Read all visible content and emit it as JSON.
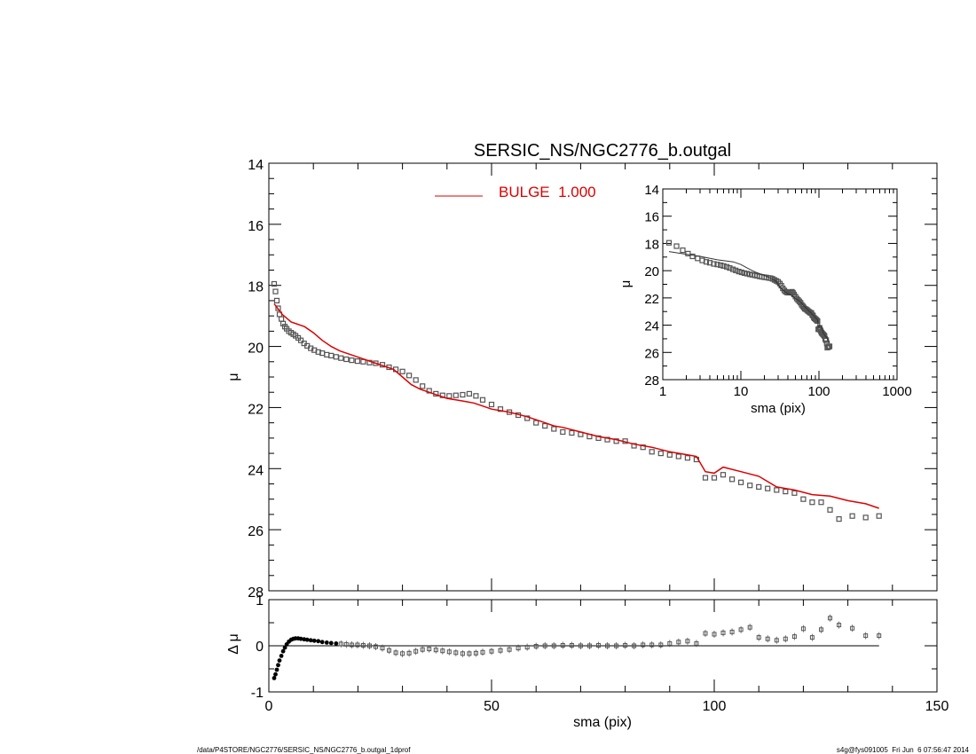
{
  "footer": {
    "left": "/data/P4STORE/NGC2776/SERSIC_NS/NGC2776_b.outgal_1dprof",
    "right": "s4g@fys091005  Fri Jun  6 07:56:47 2014"
  },
  "colors": {
    "model": "#dd0000",
    "data": "#555555",
    "inset_model": "#333333"
  },
  "chart_data": [
    {
      "type": "scatter",
      "id": "main-profile",
      "title": "SERSIC_NS/NGC2776_b.outgal",
      "xlabel": "",
      "ylabel": "μ",
      "xlim": [
        0,
        150
      ],
      "ylim": [
        28,
        14
      ],
      "y_inverted": true,
      "yticks": [
        14,
        16,
        18,
        20,
        22,
        24,
        26,
        28
      ],
      "legend": {
        "entry": "BULGE  1.000",
        "position": "top-center"
      },
      "series": [
        {
          "name": "",
          "kind": "points",
          "x": [
            1.2,
            1.5,
            1.8,
            2.1,
            2.4,
            2.8,
            3.2,
            3.6,
            4.0,
            4.5,
            5.0,
            5.5,
            6.0,
            6.6,
            7.2,
            7.9,
            8.6,
            9.4,
            10.2,
            11.1,
            12.0,
            13.0,
            14.0,
            15.1,
            16.2,
            17.4,
            18.6,
            19.9,
            21.2,
            22.6,
            24.0,
            25.5,
            27.0,
            28.5,
            30.0,
            31.5,
            33.0,
            34.5,
            36.0,
            37.5,
            39.0,
            40.5,
            42.0,
            43.5,
            45.0,
            46.5,
            48.0,
            50.0,
            52.0,
            54.0,
            56.0,
            58.0,
            60.0,
            62.0,
            64.0,
            66.0,
            68.0,
            70.0,
            72.0,
            74.0,
            76.0,
            78.0,
            80.0,
            82.0,
            84.0,
            86.0,
            88.0,
            90.0,
            92.0,
            94.0,
            96.0,
            98.0,
            100.0,
            102.0,
            104.0,
            106.0,
            108.0,
            110.0,
            112.0,
            114.0,
            116.0,
            118.0,
            120.0,
            122.0,
            124.0,
            126.0,
            128.0,
            131.0,
            134.0,
            137.0
          ],
          "y": [
            17.95,
            18.2,
            18.5,
            18.75,
            18.95,
            19.1,
            19.25,
            19.35,
            19.42,
            19.5,
            19.55,
            19.6,
            19.65,
            19.72,
            19.8,
            19.9,
            19.98,
            20.06,
            20.12,
            20.18,
            20.22,
            20.27,
            20.3,
            20.34,
            20.38,
            20.42,
            20.45,
            20.48,
            20.5,
            20.53,
            20.55,
            20.6,
            20.68,
            20.75,
            20.82,
            20.95,
            21.1,
            21.3,
            21.45,
            21.55,
            21.6,
            21.62,
            21.6,
            21.58,
            21.55,
            21.62,
            21.75,
            21.9,
            22.05,
            22.15,
            22.25,
            22.35,
            22.5,
            22.6,
            22.7,
            22.8,
            22.83,
            22.88,
            22.95,
            23.0,
            23.05,
            23.1,
            23.1,
            23.25,
            23.3,
            23.45,
            23.5,
            23.55,
            23.6,
            23.65,
            23.7,
            24.3,
            24.3,
            24.2,
            24.35,
            24.45,
            24.55,
            24.6,
            24.65,
            24.7,
            24.75,
            24.8,
            25.0,
            25.1,
            25.1,
            25.35,
            25.65,
            25.55,
            25.6,
            25.55
          ]
        },
        {
          "name": "BULGE  1.000",
          "kind": "line",
          "x": [
            1.2,
            3,
            5,
            8,
            10,
            12,
            14,
            16,
            20,
            24,
            28,
            30,
            32,
            34,
            36,
            38,
            40,
            42,
            44,
            46,
            48,
            50,
            54,
            58,
            60,
            62,
            64,
            66,
            70,
            74,
            78,
            82,
            86,
            90,
            94,
            96,
            98,
            100,
            102,
            106,
            110,
            114,
            118,
            122,
            126,
            130,
            134,
            137
          ],
          "y": [
            18.6,
            18.95,
            19.2,
            19.35,
            19.55,
            19.8,
            20.0,
            20.15,
            20.35,
            20.55,
            20.75,
            21.0,
            21.25,
            21.4,
            21.5,
            21.6,
            21.7,
            21.75,
            21.8,
            21.85,
            21.95,
            22.05,
            22.15,
            22.3,
            22.4,
            22.5,
            22.6,
            22.65,
            22.8,
            22.95,
            23.05,
            23.2,
            23.3,
            23.45,
            23.55,
            23.6,
            24.1,
            24.15,
            23.95,
            24.1,
            24.25,
            24.6,
            24.7,
            24.85,
            24.9,
            25.05,
            25.15,
            25.3
          ]
        }
      ]
    },
    {
      "type": "scatter",
      "id": "residuals",
      "xlabel": "sma (pix)",
      "ylabel": "Δ μ",
      "xlim": [
        0,
        150
      ],
      "ylim": [
        -1,
        1
      ],
      "xticks": [
        0,
        50,
        100,
        150
      ],
      "yticks": [
        -1,
        0,
        1
      ],
      "series": [
        {
          "name": "",
          "kind": "points",
          "x": [
            1.2,
            1.5,
            1.8,
            2.1,
            2.4,
            2.8,
            3.2,
            3.6,
            4.0,
            4.5,
            5.0,
            5.5,
            6.0,
            6.6,
            7.2,
            7.9,
            8.6,
            9.4,
            10.2,
            11.1,
            12.0,
            13.0,
            14.0,
            15.1,
            16.2,
            17.4,
            18.6,
            19.9,
            21.2,
            22.6,
            24.0,
            25.5,
            27.0,
            28.5,
            30.0,
            31.5,
            33.0,
            34.5,
            36.0,
            37.5,
            39.0,
            40.5,
            42.0,
            43.5,
            45.0,
            46.5,
            48.0,
            50.0,
            52.0,
            54.0,
            56.0,
            58.0,
            60.0,
            62.0,
            64.0,
            66.0,
            68.0,
            70.0,
            72.0,
            74.0,
            76.0,
            78.0,
            80.0,
            82.0,
            84.0,
            86.0,
            88.0,
            90.0,
            92.0,
            94.0,
            96.0,
            98.0,
            100.0,
            102.0,
            104.0,
            106.0,
            108.0,
            110.0,
            112.0,
            114.0,
            116.0,
            118.0,
            120.0,
            122.0,
            124.0,
            126.0,
            128.0,
            131.0,
            134.0,
            137.0
          ],
          "y": [
            -0.7,
            -0.62,
            -0.52,
            -0.42,
            -0.32,
            -0.22,
            -0.12,
            -0.04,
            0.03,
            0.09,
            0.13,
            0.15,
            0.16,
            0.16,
            0.15,
            0.14,
            0.13,
            0.12,
            0.11,
            0.1,
            0.08,
            0.07,
            0.06,
            0.05,
            0.04,
            0.03,
            0.02,
            0.02,
            0.01,
            0.0,
            -0.02,
            -0.05,
            -0.1,
            -0.15,
            -0.17,
            -0.16,
            -0.12,
            -0.08,
            -0.07,
            -0.09,
            -0.11,
            -0.13,
            -0.15,
            -0.17,
            -0.17,
            -0.16,
            -0.14,
            -0.12,
            -0.1,
            -0.08,
            -0.05,
            -0.03,
            -0.01,
            0.0,
            0.0,
            0.01,
            0.01,
            0.0,
            0.0,
            0.01,
            0.0,
            0.0,
            0.01,
            0.0,
            0.02,
            0.02,
            0.02,
            0.05,
            0.08,
            0.1,
            0.05,
            0.27,
            0.25,
            0.28,
            0.3,
            0.35,
            0.4,
            0.18,
            0.15,
            0.12,
            0.15,
            0.2,
            0.37,
            0.18,
            0.35,
            0.6,
            0.45,
            0.38,
            0.22,
            0.22
          ]
        },
        {
          "name": "",
          "kind": "hline",
          "y": 0,
          "x": [
            0,
            137
          ]
        }
      ]
    },
    {
      "type": "scatter",
      "id": "inset-log",
      "xlabel": "sma (pix)",
      "ylabel": "μ",
      "xscale": "log",
      "xlim": [
        1,
        1000
      ],
      "ylim": [
        28,
        14
      ],
      "y_inverted": true,
      "xticks": [
        1,
        10,
        100,
        1000
      ],
      "xtick_labels": [
        "1",
        "10",
        "100",
        "1000"
      ],
      "yticks": [
        14,
        16,
        18,
        20,
        22,
        24,
        26,
        28
      ],
      "series": [
        {
          "name": "",
          "kind": "points",
          "x": [
            1.2,
            1.5,
            1.8,
            2.1,
            2.4,
            2.8,
            3.2,
            3.6,
            4.0,
            4.5,
            5.0,
            5.5,
            6.0,
            6.6,
            7.2,
            7.9,
            8.6,
            9.4,
            10.2,
            11.1,
            12.0,
            13.0,
            14.0,
            15.1,
            16.2,
            17.4,
            18.6,
            19.9,
            21.2,
            22.6,
            24.0,
            25.5,
            27.0,
            28.5,
            30.0,
            31.5,
            33.0,
            34.5,
            36.0,
            37.5,
            39.0,
            40.5,
            42.0,
            43.5,
            45.0,
            46.5,
            48.0,
            50.0,
            52.0,
            54.0,
            56.0,
            58.0,
            60.0,
            62.0,
            64.0,
            66.0,
            68.0,
            70.0,
            72.0,
            74.0,
            76.0,
            78.0,
            80.0,
            82.0,
            84.0,
            86.0,
            88.0,
            90.0,
            92.0,
            94.0,
            96.0,
            98.0,
            100.0,
            102.0,
            104.0,
            106.0,
            108.0,
            110.0,
            112.0,
            114.0,
            116.0,
            118.0,
            120.0,
            122.0,
            124.0,
            126.0,
            128.0,
            131.0,
            134.0,
            137.0
          ],
          "y": [
            17.95,
            18.2,
            18.5,
            18.75,
            18.95,
            19.1,
            19.25,
            19.35,
            19.42,
            19.5,
            19.55,
            19.6,
            19.65,
            19.72,
            19.8,
            19.9,
            19.98,
            20.06,
            20.12,
            20.18,
            20.22,
            20.27,
            20.3,
            20.34,
            20.38,
            20.42,
            20.45,
            20.48,
            20.5,
            20.53,
            20.55,
            20.6,
            20.68,
            20.75,
            20.82,
            20.95,
            21.1,
            21.3,
            21.45,
            21.55,
            21.6,
            21.62,
            21.6,
            21.58,
            21.55,
            21.62,
            21.75,
            21.9,
            22.05,
            22.15,
            22.25,
            22.35,
            22.5,
            22.6,
            22.7,
            22.8,
            22.83,
            22.88,
            22.95,
            23.0,
            23.05,
            23.1,
            23.1,
            23.25,
            23.3,
            23.45,
            23.5,
            23.55,
            23.6,
            23.65,
            23.7,
            24.3,
            24.3,
            24.2,
            24.35,
            24.45,
            24.55,
            24.6,
            24.65,
            24.7,
            24.75,
            24.8,
            25.0,
            25.1,
            25.1,
            25.35,
            25.65,
            25.55,
            25.6,
            25.55
          ]
        },
        {
          "name": "",
          "kind": "line",
          "x": [
            1.2,
            3,
            5,
            8,
            10,
            12,
            14,
            16,
            20,
            24,
            28,
            30,
            32,
            34,
            36,
            38,
            40,
            42,
            44,
            46,
            48,
            50,
            54,
            58,
            60,
            62,
            64,
            66,
            70,
            74,
            78,
            82,
            86,
            90,
            94,
            96,
            98,
            100,
            102,
            106,
            110,
            114,
            118,
            122,
            126,
            130,
            134,
            137
          ],
          "y": [
            18.6,
            18.95,
            19.2,
            19.35,
            19.55,
            19.8,
            20.0,
            20.15,
            20.35,
            20.55,
            20.75,
            21.0,
            21.25,
            21.4,
            21.5,
            21.6,
            21.7,
            21.75,
            21.8,
            21.85,
            21.95,
            22.05,
            22.15,
            22.3,
            22.4,
            22.5,
            22.6,
            22.65,
            22.8,
            22.95,
            23.05,
            23.2,
            23.3,
            23.45,
            23.55,
            23.6,
            24.1,
            24.15,
            23.95,
            24.1,
            24.25,
            24.6,
            24.7,
            24.85,
            24.9,
            25.05,
            25.15,
            25.3
          ]
        }
      ]
    }
  ]
}
